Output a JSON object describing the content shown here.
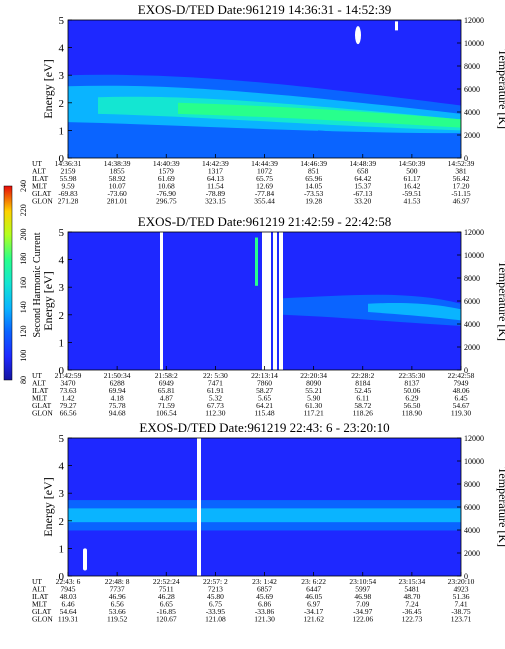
{
  "colorbar": {
    "label": "Second Harmonic Current",
    "ticks": [
      "80",
      "100",
      "120",
      "140",
      "160",
      "180",
      "200",
      "220",
      "240"
    ]
  },
  "chart_data": [
    {
      "type": "heatmap",
      "title": "EXOS-D/TED   Date:961219  14:36:31 - 14:52:39",
      "ylabel": "Energy [eV]",
      "ylabel_right": "Temperature [K]",
      "yticks": [
        "0",
        "1",
        "2",
        "3",
        "4",
        "5"
      ],
      "yticks_right": [
        "0",
        "2000",
        "4000",
        "6000",
        "8000",
        "10000",
        "12000"
      ],
      "ylim": [
        0,
        5
      ],
      "ylim_right": [
        0,
        12000
      ],
      "ephemeris": {
        "rows": [
          "UT",
          "ALT",
          "ILAT",
          "MLT",
          "GLAT",
          "GLON"
        ],
        "columns": [
          [
            "14:36:31",
            "2159",
            "55.98",
            "9.59",
            "-69.83",
            "271.28"
          ],
          [
            "14:38:39",
            "1855",
            "58.92",
            "10.07",
            "-73.60",
            "281.01"
          ],
          [
            "14:40:39",
            "1579",
            "61.69",
            "10.68",
            "-76.90",
            "296.75"
          ],
          [
            "14:42:39",
            "1317",
            "64.13",
            "11.54",
            "-78.89",
            "323.15"
          ],
          [
            "14:44:39",
            "1072",
            "65.75",
            "12.69",
            "-77.84",
            "355.44"
          ],
          [
            "14:46:39",
            "851",
            "65.96",
            "14.05",
            "-73.53",
            "19.28"
          ],
          [
            "14:48:39",
            "658",
            "64.42",
            "15.37",
            "-67.13",
            "33.20"
          ],
          [
            "14:50:39",
            "500",
            "61.17",
            "16.42",
            "-59.51",
            "41.53"
          ],
          [
            "14:52:39",
            "381",
            "56.42",
            "17.20",
            "-51.15",
            "46.97"
          ]
        ]
      }
    },
    {
      "type": "heatmap",
      "title": "EXOS-D/TED   Date:961219  21:42:59 - 22:42:58",
      "ylabel": "Energy [eV]",
      "ylabel_right": "Temperature [K]",
      "yticks": [
        "0",
        "1",
        "2",
        "3",
        "4",
        "5"
      ],
      "yticks_right": [
        "0",
        "2000",
        "4000",
        "6000",
        "8000",
        "10000",
        "12000"
      ],
      "ylim": [
        0,
        5
      ],
      "ylim_right": [
        0,
        12000
      ],
      "ephemeris": {
        "rows": [
          "UT",
          "ALT",
          "ILAT",
          "MLT",
          "GLAT",
          "GLON"
        ],
        "columns": [
          [
            "21:42:59",
            "3470",
            "73.63",
            "1.42",
            "79.27",
            "66.56"
          ],
          [
            "21:50:34",
            "6288",
            "69.94",
            "4.18",
            "75.78",
            "94.68"
          ],
          [
            "21:58:2",
            "6949",
            "65.81",
            "4.87",
            "71.59",
            "106.54"
          ],
          [
            "22: 5:30",
            "7471",
            "61.91",
            "5.32",
            "67.73",
            "112.30"
          ],
          [
            "22:13:14",
            "7860",
            "58.27",
            "5.65",
            "64.21",
            "115.48"
          ],
          [
            "22:20:34",
            "8090",
            "55.21",
            "5.90",
            "61.30",
            "117.21"
          ],
          [
            "22:28:2",
            "8184",
            "52.45",
            "6.11",
            "58.72",
            "118.26"
          ],
          [
            "22:35:30",
            "8137",
            "50.06",
            "6.29",
            "56.50",
            "118.90"
          ],
          [
            "22:42:58",
            "7949",
            "48.06",
            "6.45",
            "54.67",
            "119.30"
          ]
        ]
      }
    },
    {
      "type": "heatmap",
      "title": "EXOS-D/TED   Date:961219  22:43: 6 - 23:20:10",
      "ylabel": "Energy [eV]",
      "ylabel_right": "Temperature [K]",
      "yticks": [
        "0",
        "1",
        "2",
        "3",
        "4",
        "5"
      ],
      "yticks_right": [
        "0",
        "2000",
        "4000",
        "6000",
        "8000",
        "10000",
        "12000"
      ],
      "ylim": [
        0,
        5
      ],
      "ylim_right": [
        0,
        12000
      ],
      "ephemeris": {
        "rows": [
          "UT",
          "ALT",
          "ILAT",
          "MLT",
          "GLAT",
          "GLON"
        ],
        "columns": [
          [
            "22:43: 6",
            "7945",
            "48.03",
            "6.46",
            "54.64",
            "119.31"
          ],
          [
            "22:48: 8",
            "7737",
            "46.96",
            "6.56",
            "53.66",
            "119.52"
          ],
          [
            "22:52:24",
            "7511",
            "46.28",
            "6.65",
            "-16.85",
            "120.67"
          ],
          [
            "22:57: 2",
            "7213",
            "45.80",
            "6.75",
            "-33.95",
            "121.08"
          ],
          [
            "23: 1:42",
            "6857",
            "45.69",
            "6.86",
            "-33.86",
            "121.30"
          ],
          [
            "23: 6:22",
            "6447",
            "46.05",
            "6.97",
            "-34.17",
            "121.62"
          ],
          [
            "23:10:54",
            "5997",
            "46.98",
            "7.09",
            "-34.97",
            "122.06"
          ],
          [
            "23:15:34",
            "5481",
            "48.70",
            "7.24",
            "-36.45",
            "122.73"
          ],
          [
            "23:20:10",
            "4923",
            "51.36",
            "7.41",
            "-38.75",
            "123.71"
          ]
        ]
      }
    }
  ]
}
